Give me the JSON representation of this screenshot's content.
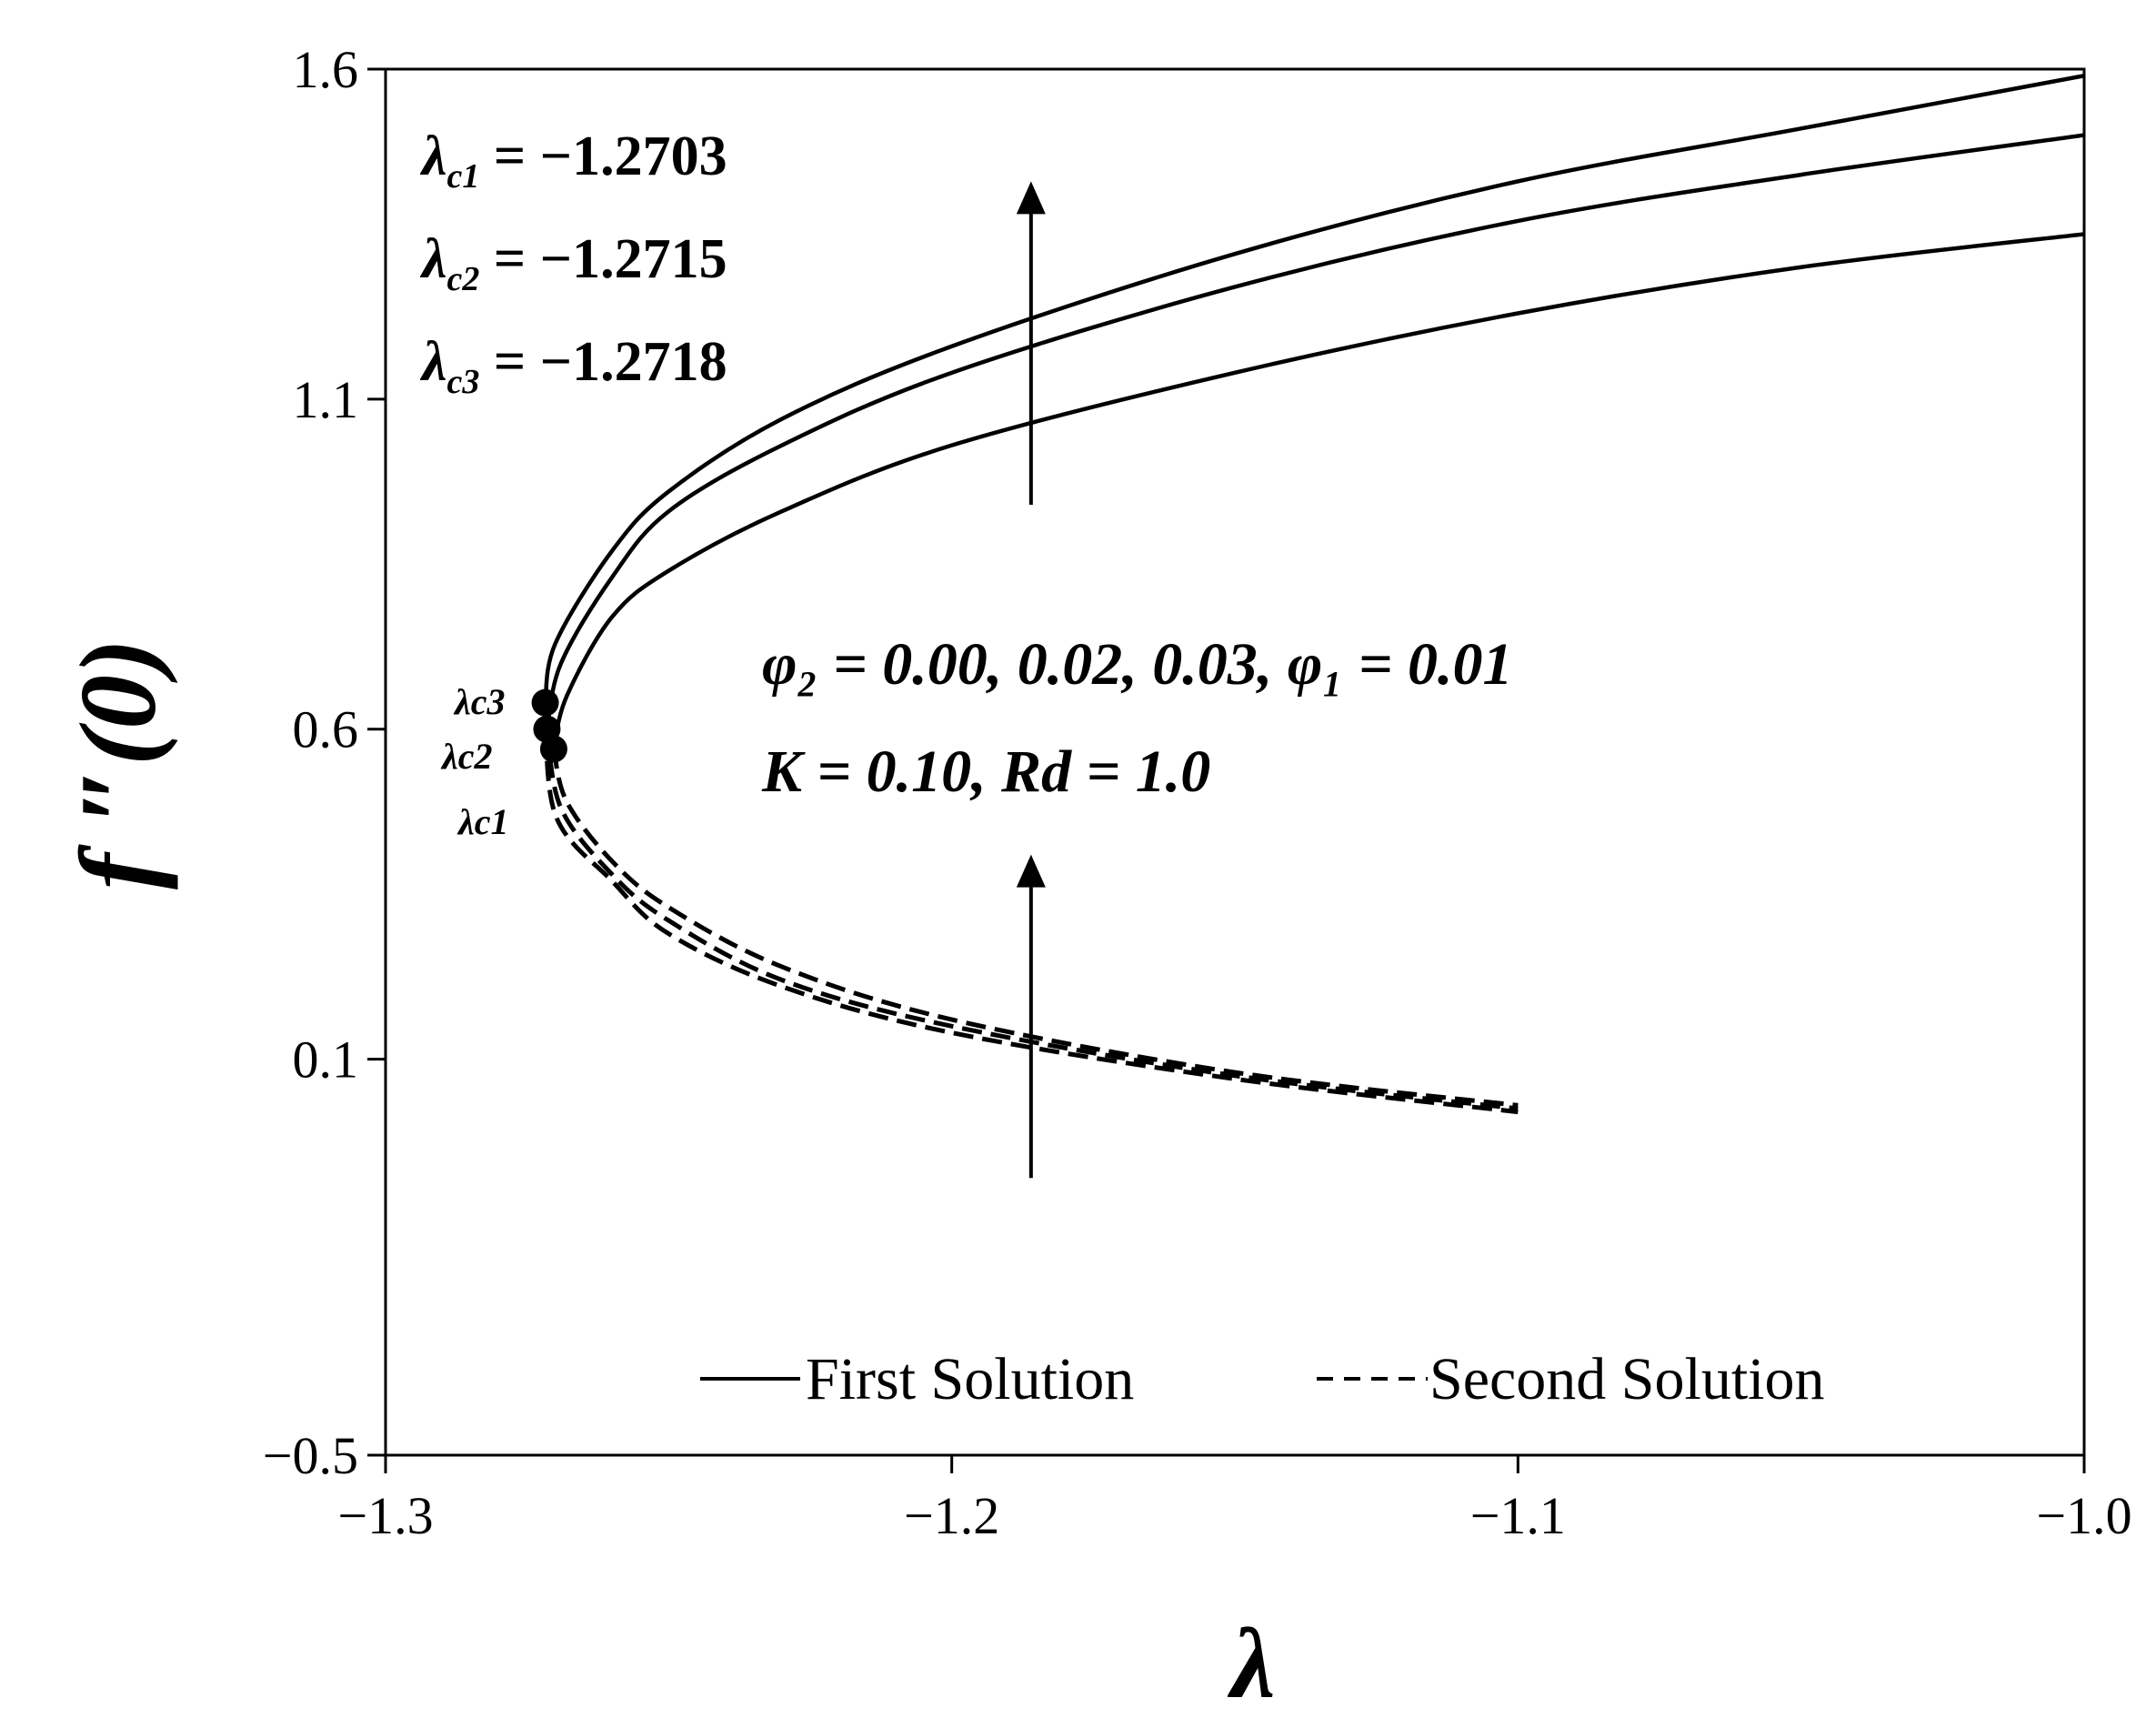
{
  "chart_data": {
    "type": "line",
    "xlabel": "λ",
    "ylabel": "f ″(0)",
    "xlim": [
      -1.3,
      -1.0
    ],
    "ylim": [
      -0.5,
      1.6
    ],
    "x_ticks": [
      -1.3,
      -1.2,
      -1.1,
      -1.0
    ],
    "y_ticks": [
      -0.5,
      0.1,
      0.6,
      1.1,
      1.6
    ],
    "x_tick_labels": [
      "−1.3",
      "−1.2",
      "−1.1",
      "−1.0"
    ],
    "y_tick_labels": [
      "−0.5",
      "0.1",
      "0.6",
      "1.1",
      "1.6"
    ],
    "grid": false,
    "legend_position": "bottom-center",
    "legend": {
      "first": "First Solution",
      "second": "Second Solution"
    },
    "annotations": {
      "lc1": {
        "sym": "λ",
        "sub": "c1",
        "rest": " = −1.2703"
      },
      "lc2": {
        "sym": "λ",
        "sub": "c2",
        "rest": " = −1.2715"
      },
      "lc3": {
        "sym": "λ",
        "sub": "c3",
        "rest": " = −1.2718"
      },
      "params_line1": "φ₂ = 0.00,  0.02,  0.03,  φ₁ = 0.01",
      "params_line2": "K = 0.10,  Rd = 1.0",
      "critical_labels": [
        "λc3",
        "λc2",
        "λc1"
      ]
    },
    "critical_points": [
      {
        "name": "λc1",
        "x": -1.2703,
        "y": 0.57
      },
      {
        "name": "λc2",
        "x": -1.2715,
        "y": 0.6
      },
      {
        "name": "λc3",
        "x": -1.2718,
        "y": 0.64
      }
    ],
    "series": [
      {
        "x": [
          -1.2703,
          -1.268,
          -1.26,
          -1.25,
          -1.23,
          -1.2,
          -1.15,
          -1.1,
          -1.05,
          -1.0
        ],
        "y": [
          0.57,
          0.65,
          0.77,
          0.84,
          0.93,
          1.03,
          1.14,
          1.23,
          1.3,
          1.35
        ]
      },
      {
        "x": [
          -1.2715,
          -1.269,
          -1.26,
          -1.25,
          -1.23,
          -1.2,
          -1.15,
          -1.1,
          -1.05,
          -1.0
        ],
        "y": [
          0.6,
          0.7,
          0.83,
          0.93,
          1.03,
          1.14,
          1.27,
          1.37,
          1.44,
          1.5
        ]
      },
      {
        "x": [
          -1.2718,
          -1.27,
          -1.26,
          -1.25,
          -1.23,
          -1.2,
          -1.15,
          -1.1,
          -1.05,
          -1.0
        ],
        "y": [
          0.64,
          0.73,
          0.87,
          0.96,
          1.07,
          1.18,
          1.32,
          1.43,
          1.51,
          1.59
        ]
      },
      {
        "x": [
          -1.2703,
          -1.268,
          -1.26,
          -1.25,
          -1.23,
          -1.2,
          -1.15,
          -1.1
        ],
        "y": [
          0.57,
          0.49,
          0.4,
          0.33,
          0.24,
          0.16,
          0.08,
          0.03
        ]
      },
      {
        "x": [
          -1.2715,
          -1.269,
          -1.26,
          -1.25,
          -1.23,
          -1.2,
          -1.15,
          -1.1
        ],
        "y": [
          0.6,
          0.48,
          0.38,
          0.31,
          0.22,
          0.15,
          0.075,
          0.025
        ]
      },
      {
        "x": [
          -1.2718,
          -1.27,
          -1.26,
          -1.25,
          -1.23,
          -1.2,
          -1.15,
          -1.1
        ],
        "y": [
          0.64,
          0.47,
          0.37,
          0.29,
          0.21,
          0.14,
          0.07,
          0.02
        ]
      }
    ],
    "arrows": [
      {
        "x": -1.186,
        "y_from": 0.94,
        "y_to": 1.43
      },
      {
        "x": -1.186,
        "y_from": -0.08,
        "y_to": 0.41
      }
    ]
  }
}
